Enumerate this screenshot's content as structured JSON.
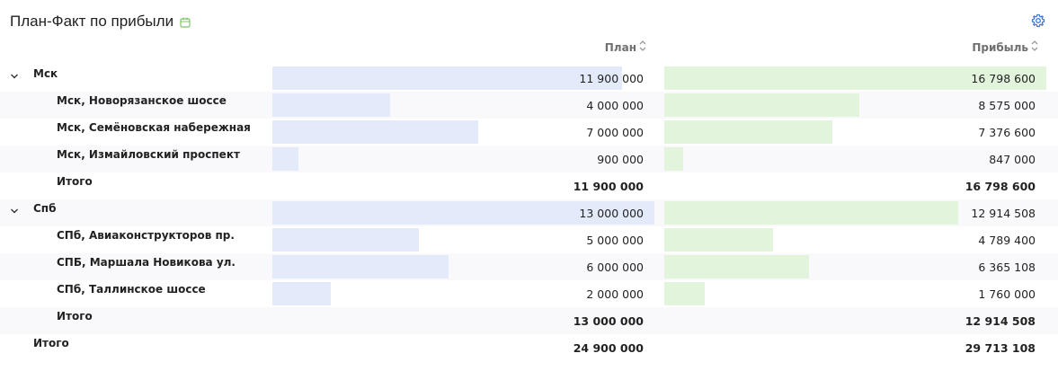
{
  "title": "План-Факт по прибыли",
  "icons": {
    "calendar": "calendar-icon",
    "settings": "gear-icon",
    "sort": "sort-icon",
    "collapse": "chevron-down-icon"
  },
  "colors": {
    "plan_bar": "#e3ebfb",
    "profit_bar": "#e3f4dc",
    "accent": "#3a7bd5",
    "calendar": "#7cc46a"
  },
  "columns": {
    "plan": "План",
    "profit": "Прибыль"
  },
  "scale": {
    "plan_max": 13000000,
    "profit_max": 16798600
  },
  "rows": [
    {
      "level": 0,
      "name": "Мск",
      "plan": 11900000,
      "plan_text": "11 900 000",
      "profit": 16798600,
      "profit_text": "16 798 600",
      "expandable": true
    },
    {
      "level": 1,
      "name": "Мск, Новорязанское шоссе",
      "plan": 4000000,
      "plan_text": "4 000 000",
      "profit": 8575000,
      "profit_text": "8 575 000"
    },
    {
      "level": 1,
      "name": "Мск, Семёновская набережная",
      "plan": 7000000,
      "plan_text": "7 000 000",
      "profit": 7376600,
      "profit_text": "7 376 600"
    },
    {
      "level": 1,
      "name": "Мск, Измайловский проспект",
      "plan": 900000,
      "plan_text": "900 000",
      "profit": 847000,
      "profit_text": "847 000"
    },
    {
      "level": 1,
      "name": "Итого",
      "plan_text": "11 900 000",
      "profit_text": "16 798 600",
      "total": true
    },
    {
      "level": 0,
      "name": "Спб",
      "plan": 13000000,
      "plan_text": "13 000 000",
      "profit": 12914508,
      "profit_text": "12 914 508",
      "expandable": true
    },
    {
      "level": 1,
      "name": "СПб, Авиаконструкторов пр.",
      "plan": 5000000,
      "plan_text": "5 000 000",
      "profit": 4789400,
      "profit_text": "4 789 400"
    },
    {
      "level": 1,
      "name": "СПБ, Маршала Новикова ул.",
      "plan": 6000000,
      "plan_text": "6 000 000",
      "profit": 6365108,
      "profit_text": "6 365 108"
    },
    {
      "level": 1,
      "name": "СПб, Таллинское шоссе",
      "plan": 2000000,
      "plan_text": "2 000 000",
      "profit": 1760000,
      "profit_text": "1 760 000"
    },
    {
      "level": 1,
      "name": "Итого",
      "plan_text": "13 000 000",
      "profit_text": "12 914 508",
      "total": true
    },
    {
      "level": 0,
      "name": "Итого",
      "plan_text": "24 900 000",
      "profit_text": "29 713 108",
      "total": true
    }
  ]
}
